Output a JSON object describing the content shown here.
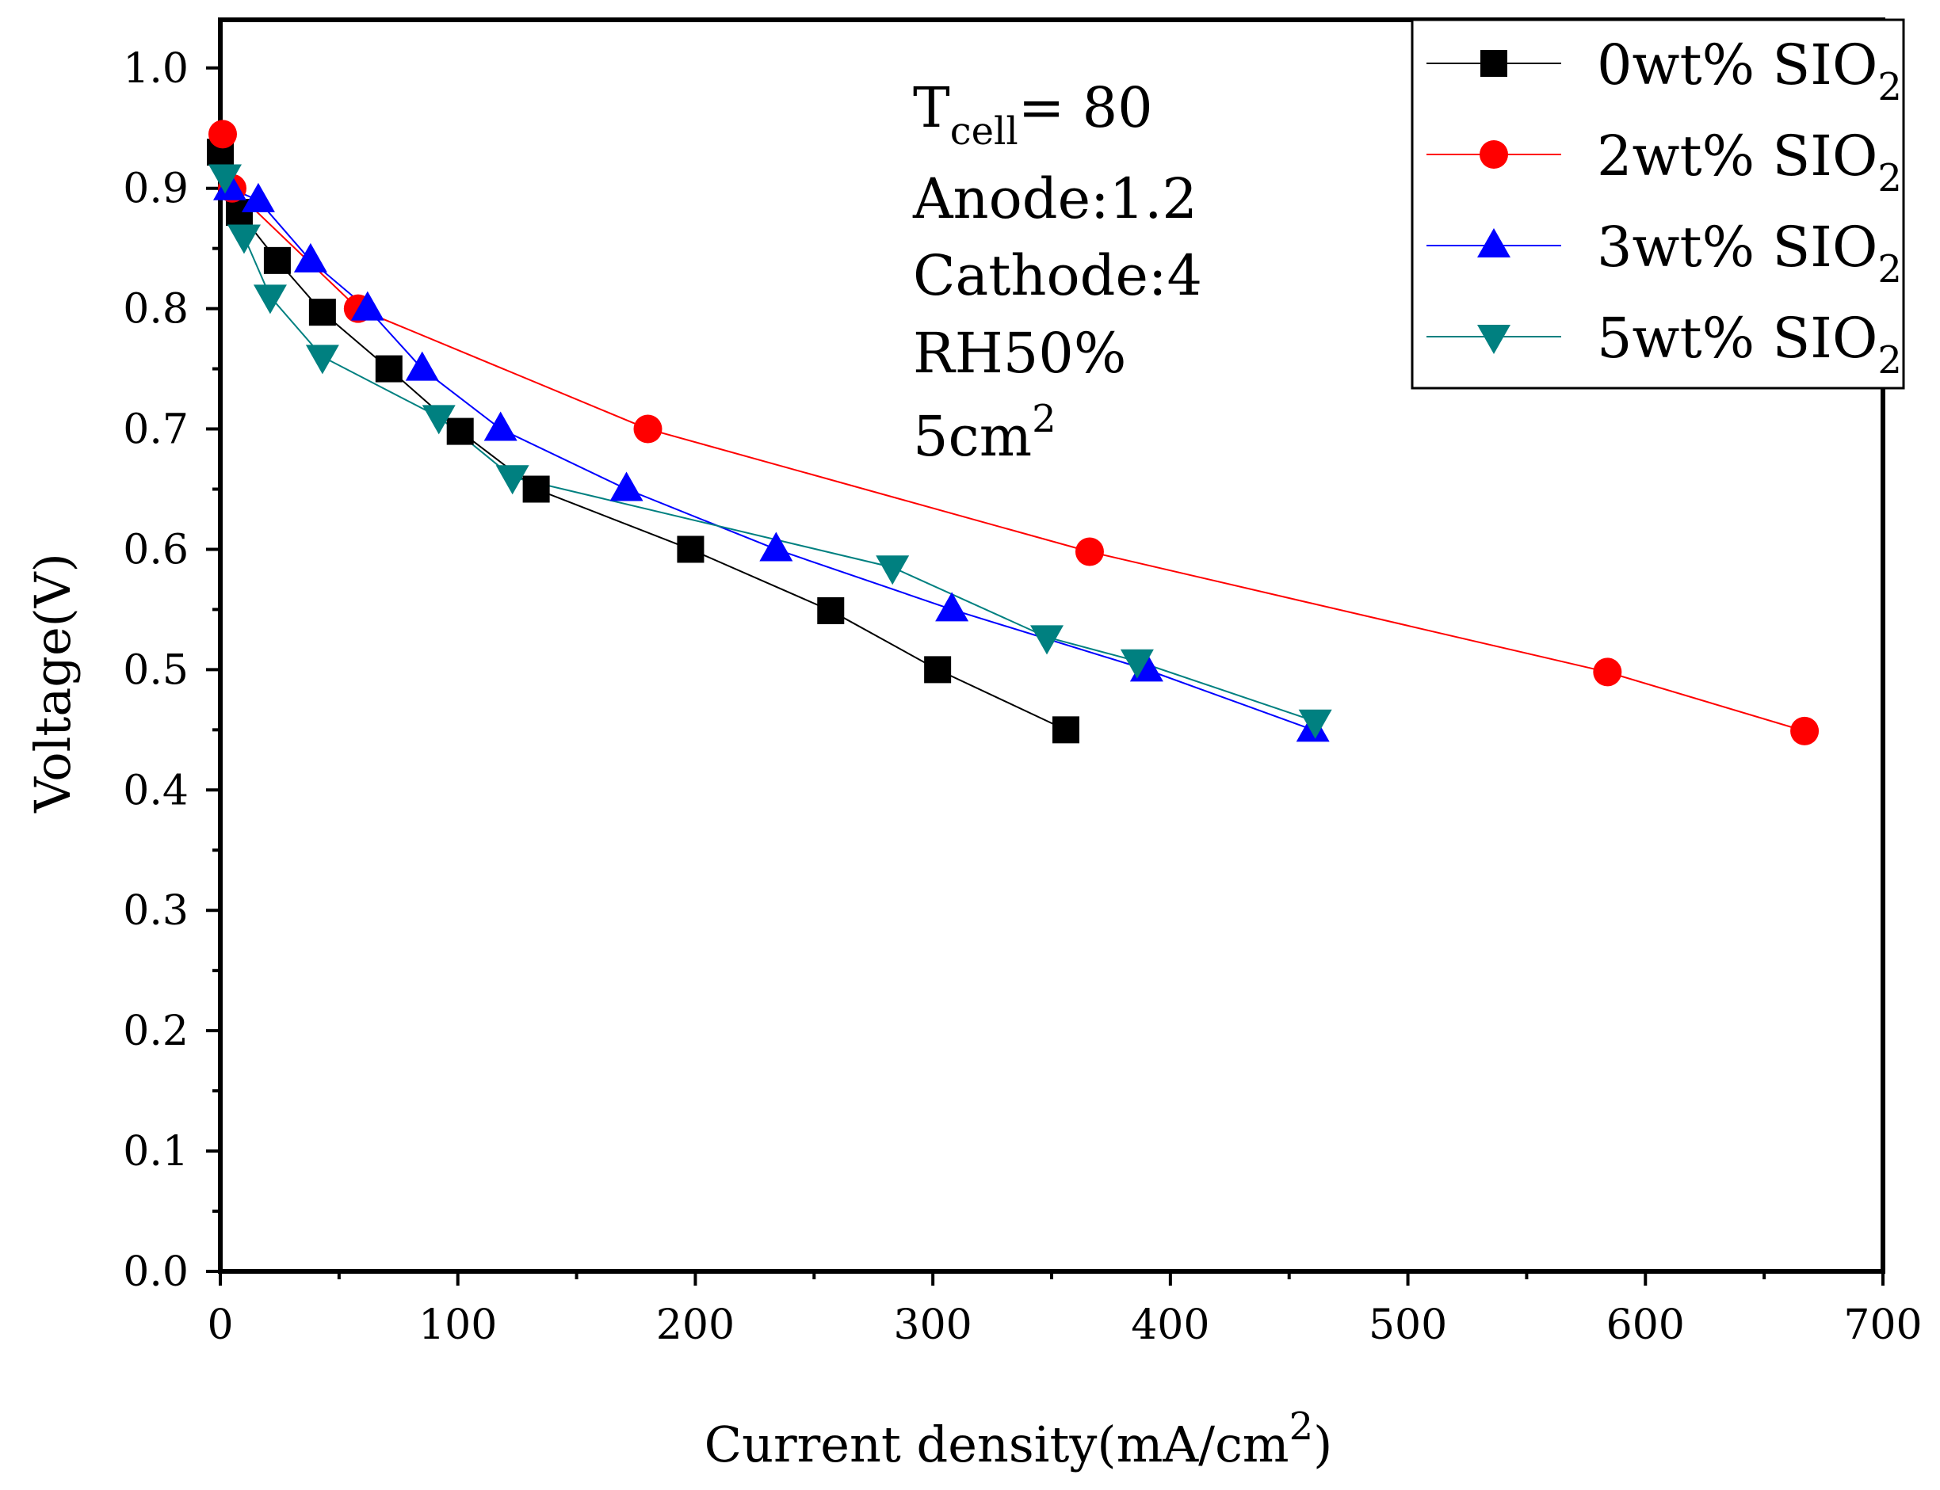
{
  "chart_data": {
    "type": "line",
    "xlabel": "Current density(mA/cm",
    "xlabel_sup": "2",
    "xlabel_close": ")",
    "ylabel": "Voltage(V)",
    "xlim": [
      0,
      700
    ],
    "ylim": [
      0,
      1.04
    ],
    "xticks": [
      "0",
      "100",
      "200",
      "300",
      "400",
      "500",
      "600",
      "700"
    ],
    "yticks": [
      "0.0",
      "0.1",
      "0.2",
      "0.3",
      "0.4",
      "0.5",
      "0.6",
      "0.7",
      "0.8",
      "0.9",
      "1.0"
    ],
    "legend_position": "top-right",
    "annotations": {
      "tcell_main": "T",
      "tcell_sub": "cell",
      "tcell_value": "= 80",
      "anode": "Anode:1.2",
      "cathode": "Cathode:4",
      "rh": "RH50%",
      "area_main": "5cm",
      "area_sup": "2"
    },
    "series": [
      {
        "name": "0wt% SIO2",
        "label_main": "0wt% SIO",
        "label_sub": "2",
        "color": "#000000",
        "marker": "square",
        "x": [
          0,
          8,
          24,
          43,
          71,
          101,
          133,
          198,
          257,
          302,
          356
        ],
        "y": [
          0.93,
          0.88,
          0.84,
          0.797,
          0.75,
          0.698,
          0.65,
          0.6,
          0.549,
          0.5,
          0.45
        ]
      },
      {
        "name": "2wt% SIO2",
        "label_main": "2wt% SIO",
        "label_sub": "2",
        "color": "#ff0000",
        "marker": "circle",
        "x": [
          1,
          5,
          58,
          180,
          366,
          584,
          667
        ],
        "y": [
          0.945,
          0.9,
          0.8,
          0.7,
          0.598,
          0.498,
          0.449
        ]
      },
      {
        "name": "3wt% SIO2",
        "label_main": "3wt% SIO",
        "label_sub": "2",
        "color": "#0000ff",
        "marker": "triangle-up",
        "x": [
          4,
          16,
          38,
          62,
          85,
          118,
          171,
          234,
          308,
          390,
          460
        ],
        "y": [
          0.9,
          0.89,
          0.84,
          0.8,
          0.75,
          0.7,
          0.65,
          0.6,
          0.55,
          0.5,
          0.45
        ]
      },
      {
        "name": "5wt% SIO2",
        "label_main": "5wt% SIO",
        "label_sub": "2",
        "color": "#008080",
        "marker": "triangle-down",
        "x": [
          2,
          10,
          21,
          43,
          92,
          123,
          283,
          348,
          386,
          461
        ],
        "y": [
          0.91,
          0.86,
          0.81,
          0.76,
          0.71,
          0.66,
          0.585,
          0.527,
          0.507,
          0.457
        ]
      }
    ]
  }
}
